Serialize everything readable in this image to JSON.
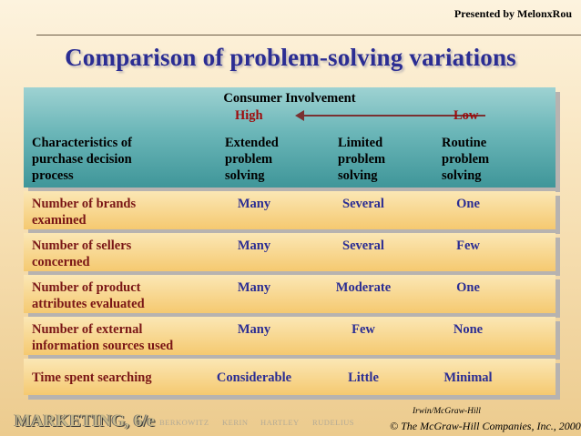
{
  "presented_by": "Presented by MelonxRou",
  "title": "Comparison of problem-solving variations",
  "header": {
    "consumer_involvement": "Consumer Involvement",
    "high": "High",
    "low": "Low",
    "characteristics": [
      "Characteristics of",
      "purchase decision",
      "process"
    ],
    "columns": [
      [
        "Extended",
        "problem",
        "solving"
      ],
      [
        "Limited",
        "problem",
        "solving"
      ],
      [
        "Routine",
        "problem",
        "solving"
      ]
    ]
  },
  "rows": [
    {
      "label": [
        "Number of brands",
        "examined"
      ],
      "values": [
        "Many",
        "Several",
        "One"
      ]
    },
    {
      "label": [
        "Number of sellers",
        "concerned"
      ],
      "values": [
        "Many",
        "Several",
        "Few"
      ]
    },
    {
      "label": [
        "Number of product",
        "attributes evaluated"
      ],
      "values": [
        "Many",
        "Moderate",
        "One"
      ]
    },
    {
      "label": [
        "Number of external",
        "information sources used"
      ],
      "values": [
        "Many",
        "Few",
        "None"
      ]
    },
    {
      "label": [
        "Time spent searching"
      ],
      "values": [
        "Considerable",
        "Little",
        "Minimal"
      ]
    }
  ],
  "footer": {
    "logo": "MARKETING, 6/e",
    "authors": [
      "BERKOWITZ",
      "KERIN",
      "HARTLEY",
      "RUDELIUS"
    ],
    "publisher": "Irwin/McGraw-Hill",
    "copyright": "© The McGraw-Hill Companies, Inc., 2000"
  }
}
